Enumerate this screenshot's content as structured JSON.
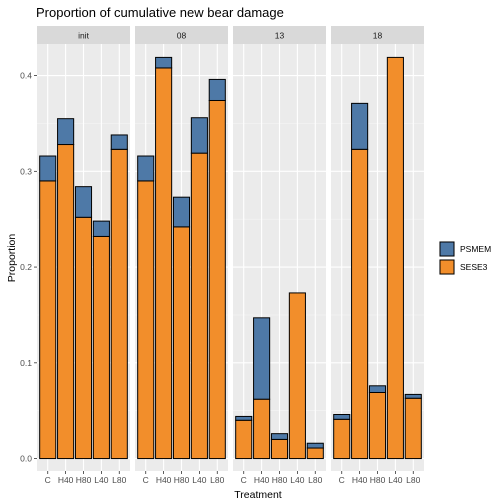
{
  "chart_data": {
    "type": "bar",
    "stacked": true,
    "title": "Proportion of cumulative new bear damage",
    "xlabel": "Treatment",
    "ylabel": "Proportion",
    "ylim": [
      -0.013,
      0.433
    ],
    "yticks": [
      0.0,
      0.1,
      0.2,
      0.3,
      0.4
    ],
    "ytick_labels": [
      "0.0",
      "0.1",
      "0.2",
      "0.3",
      "0.4"
    ],
    "categories": [
      "C",
      "H40",
      "H80",
      "L40",
      "L80"
    ],
    "grid": true,
    "legend_position": "right",
    "series": [
      {
        "name": "PSMEM",
        "color": "#4e79a7"
      },
      {
        "name": "SESE3",
        "color": "#f28e2b"
      }
    ],
    "facets": [
      {
        "label": "init",
        "values": {
          "SESE3": [
            0.29,
            0.328,
            0.252,
            0.232,
            0.323
          ],
          "PSMEM": [
            0.026,
            0.027,
            0.032,
            0.016,
            0.015
          ]
        }
      },
      {
        "label": "08",
        "values": {
          "SESE3": [
            0.29,
            0.408,
            0.242,
            0.319,
            0.374
          ],
          "PSMEM": [
            0.026,
            0.011,
            0.031,
            0.037,
            0.022
          ]
        }
      },
      {
        "label": "13",
        "values": {
          "SESE3": [
            0.04,
            0.062,
            0.02,
            0.173,
            0.011
          ],
          "PSMEM": [
            0.004,
            0.085,
            0.006,
            0.0,
            0.005
          ]
        }
      },
      {
        "label": "18",
        "values": {
          "SESE3": [
            0.041,
            0.323,
            0.069,
            0.419,
            0.063
          ],
          "PSMEM": [
            0.005,
            0.048,
            0.007,
            0.0,
            0.004
          ]
        }
      }
    ]
  }
}
